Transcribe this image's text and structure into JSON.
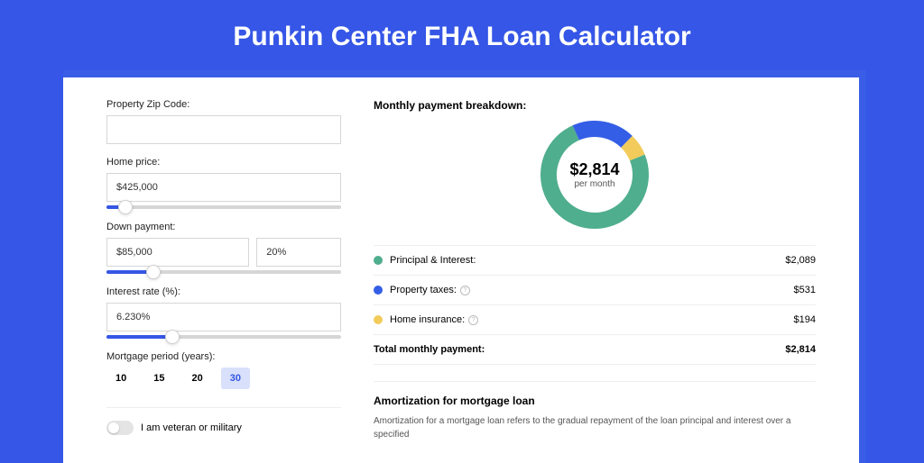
{
  "title": "Punkin Center FHA Loan Calculator",
  "colors": {
    "page_bg": "#3556e6",
    "shadow_bg": "#3a5de8",
    "green": "#4fae8d",
    "blue": "#345ee6",
    "yellow": "#f2cb5b"
  },
  "form": {
    "zip": {
      "label": "Property Zip Code:",
      "value": ""
    },
    "price": {
      "label": "Home price:",
      "value": "$425,000",
      "slider_pct": 8
    },
    "down": {
      "label": "Down payment:",
      "amount": "$85,000",
      "pct": "20%",
      "slider_pct": 20
    },
    "rate": {
      "label": "Interest rate (%):",
      "value": "6.230%",
      "slider_pct": 28
    },
    "period": {
      "label": "Mortgage period (years):",
      "options": [
        "10",
        "15",
        "20",
        "30"
      ],
      "selected": "30"
    },
    "veteran": {
      "label": "I am veteran or military",
      "on": false
    }
  },
  "breakdown": {
    "title": "Monthly payment breakdown:",
    "center_amount": "$2,814",
    "center_sub": "per month",
    "donut": {
      "size": 120,
      "stroke": 18,
      "slices": [
        {
          "color": "#4fae8d",
          "pct": 74.3
        },
        {
          "color": "#345ee6",
          "pct": 18.9
        },
        {
          "color": "#f2cb5b",
          "pct": 6.8
        }
      ]
    },
    "rows": [
      {
        "dot": "#4fae8d",
        "label": "Principal & Interest:",
        "info": false,
        "value": "$2,089"
      },
      {
        "dot": "#345ee6",
        "label": "Property taxes:",
        "info": true,
        "value": "$531"
      },
      {
        "dot": "#f2cb5b",
        "label": "Home insurance:",
        "info": true,
        "value": "$194"
      }
    ],
    "total": {
      "label": "Total monthly payment:",
      "value": "$2,814"
    }
  },
  "amort": {
    "title": "Amortization for mortgage loan",
    "text": "Amortization for a mortgage loan refers to the gradual repayment of the loan principal and interest over a specified"
  }
}
